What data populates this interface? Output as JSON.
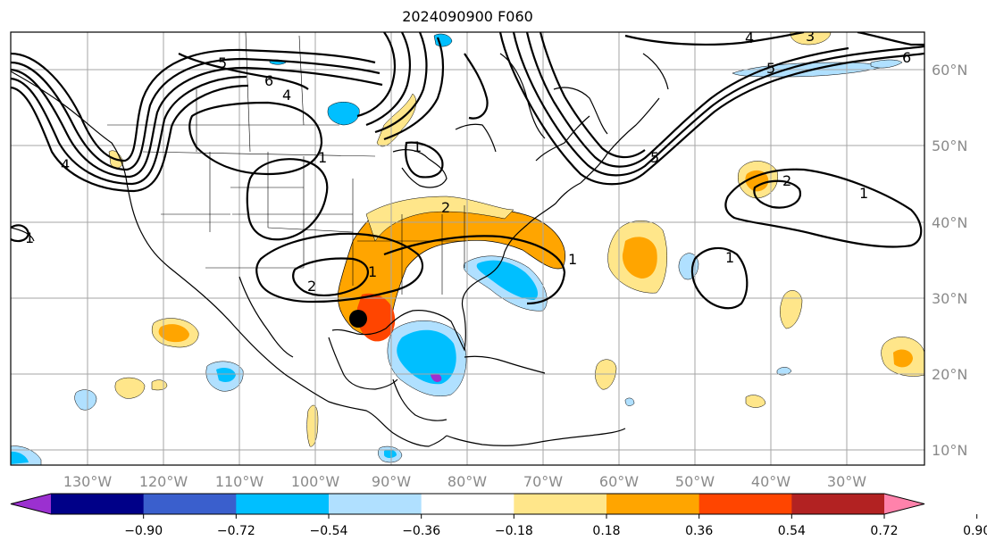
{
  "title": "2024090900 F060",
  "longitude_labels": [
    "130°W",
    "120°W",
    "110°W",
    "100°W",
    "90°W",
    "80°W",
    "70°W",
    "60°W",
    "50°W",
    "40°W",
    "30°W"
  ],
  "latitude_labels": [
    "60°N",
    "50°N",
    "40°N",
    "30°N",
    "20°N",
    "10°N"
  ],
  "colorbar": {
    "colors": [
      "#9b30d0",
      "#000088",
      "#3a5fcd",
      "#00bfff",
      "#b0e0ff",
      "#ffffff",
      "#ffe68a",
      "#ffa500",
      "#ff4500",
      "#b22222",
      "#ff82ab"
    ],
    "tick_labels": [
      "−0.90",
      "−0.72",
      "−0.54",
      "−0.36",
      "−0.18",
      "0.18",
      "0.36",
      "0.54",
      "0.72",
      "0.90"
    ]
  },
  "contour_labels": [
    "6",
    "5",
    "4",
    "4",
    "1",
    "1",
    "2",
    "2",
    "1",
    "1",
    "2",
    "1",
    "1",
    "4",
    "3",
    "5",
    "6",
    "5",
    "1"
  ],
  "storm_marker": {
    "lat": 27.5,
    "lon": -94.3
  }
}
